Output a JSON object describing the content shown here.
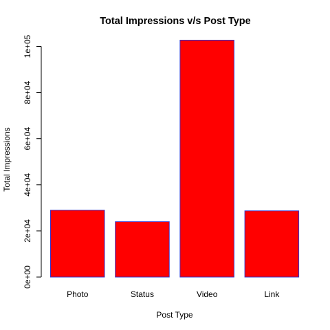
{
  "chart_data": {
    "type": "bar",
    "title": "Total Impressions v/s Post Type",
    "xlabel": "Post Type",
    "ylabel": "Total Impressions",
    "categories": [
      "Photo",
      "Status",
      "Video",
      "Link"
    ],
    "values": [
      29000,
      24000,
      102700,
      28700
    ],
    "ylim": [
      0,
      100000
    ],
    "yticks": [
      0,
      20000,
      40000,
      60000,
      80000,
      100000
    ],
    "ytick_labels": [
      "0e+00",
      "2e+04",
      "4e+04",
      "6e+04",
      "8e+04",
      "1e+05"
    ],
    "bar_fill": "#ff0000",
    "bar_border": "#3333cc",
    "grid": false,
    "legend": "none"
  }
}
